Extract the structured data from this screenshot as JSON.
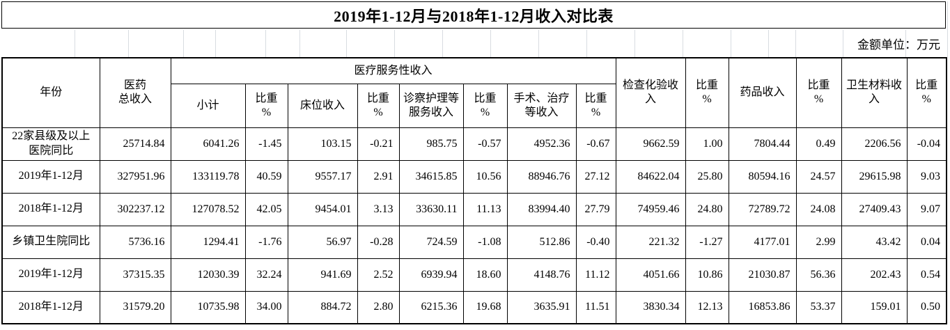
{
  "title": "2019年1-12月与2018年1-12月收入对比表",
  "unit_note": "金额单位：万元",
  "table": {
    "header": {
      "year": "年份",
      "total_income": "医药\n总收入",
      "group": "医疗服务性收入",
      "sub": [
        "小计",
        "比重\n%",
        "床位收入",
        "比重\n%",
        "诊察护理等\n服务收入",
        "比重\n%",
        "手术、治疗\n等收入",
        "比重\n%"
      ],
      "right": [
        "检查化验收\n入",
        "比重\n%",
        "药品收入",
        "比重\n%",
        "卫生材料收\n入",
        "比重\n%"
      ]
    },
    "rows": [
      {
        "label": "22家县级及以上\n医院同比",
        "values": [
          "25714.84",
          "6041.26",
          "-1.45",
          "103.15",
          "-0.21",
          "985.75",
          "-0.57",
          "4952.36",
          "-0.67",
          "9662.59",
          "1.00",
          "7804.44",
          "0.49",
          "2206.56",
          "-0.04"
        ]
      },
      {
        "label": "2019年1-12月",
        "values": [
          "327951.96",
          "133119.78",
          "40.59",
          "9557.17",
          "2.91",
          "34615.85",
          "10.56",
          "88946.76",
          "27.12",
          "84622.04",
          "25.80",
          "80594.16",
          "24.57",
          "29615.98",
          "9.03"
        ]
      },
      {
        "label": "2018年1-12月",
        "values": [
          "302237.12",
          "127078.52",
          "42.05",
          "9454.01",
          "3.13",
          "33630.11",
          "11.13",
          "83994.40",
          "27.79",
          "74959.46",
          "24.80",
          "72789.72",
          "24.08",
          "27409.43",
          "9.07"
        ]
      },
      {
        "label": "乡镇卫生院同比",
        "values": [
          "5736.16",
          "1294.41",
          "-1.76",
          "56.97",
          "-0.28",
          "724.59",
          "-1.08",
          "512.86",
          "-0.40",
          "221.32",
          "-1.27",
          "4177.01",
          "2.99",
          "43.42",
          "0.04"
        ]
      },
      {
        "label": "2019年1-12月",
        "values": [
          "37315.35",
          "12030.39",
          "32.24",
          "941.69",
          "2.52",
          "6939.94",
          "18.60",
          "4148.76",
          "11.12",
          "4051.66",
          "10.86",
          "21030.87",
          "56.36",
          "202.43",
          "0.54"
        ]
      },
      {
        "label": "2018年1-12月",
        "values": [
          "31579.20",
          "10735.98",
          "34.00",
          "884.72",
          "2.80",
          "6215.36",
          "19.68",
          "3635.91",
          "11.51",
          "3830.34",
          "12.13",
          "16853.86",
          "53.37",
          "159.01",
          "0.50"
        ]
      }
    ]
  }
}
